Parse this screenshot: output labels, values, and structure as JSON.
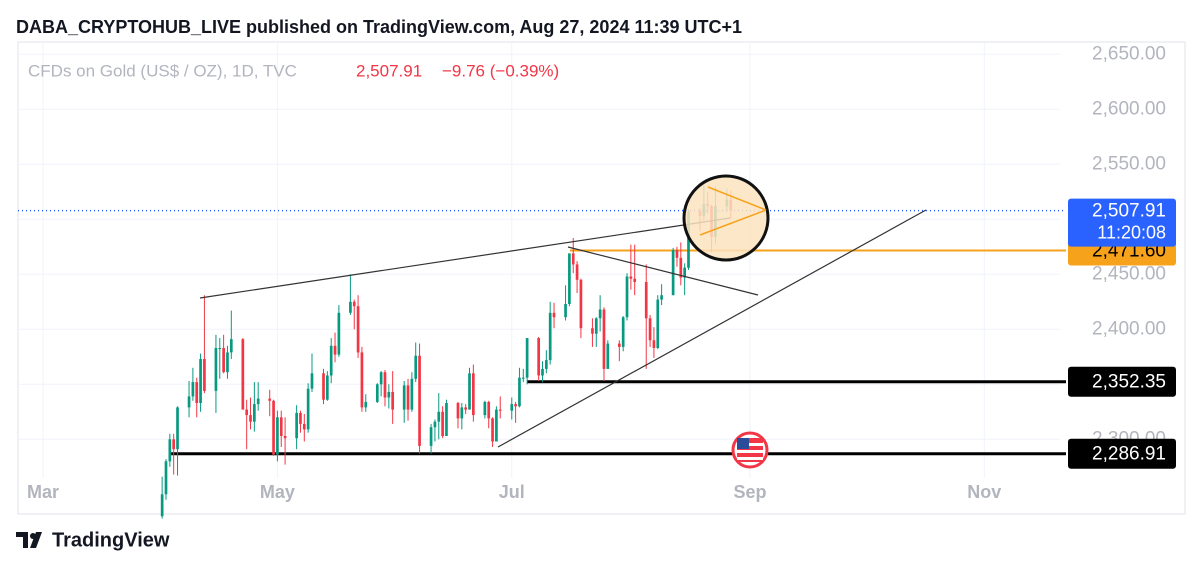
{
  "header": "DABA_CRYPTOHUB_LIVE published on TradingView.com, Aug 27, 2024 11:39 UTC+1",
  "footer": "TradingView",
  "chart_data": {
    "type": "candlestick",
    "title": "CFDs on Gold (US$ / OZ), 1D, TVC",
    "last_price": {
      "value": 2507.91,
      "label": "2,507.91",
      "color": "#f23645"
    },
    "change": "−9.76 (−0.39%)",
    "countdown": "11:20:08",
    "up_color": "#089981",
    "down_color": "#f23645",
    "x": [
      31,
      32,
      33,
      34,
      35,
      38,
      39,
      40,
      41,
      42,
      45,
      46,
      47,
      48,
      49,
      52,
      53,
      54,
      55,
      56,
      59,
      60,
      61,
      62,
      63,
      66,
      67,
      68,
      69,
      70,
      73,
      74,
      75,
      76,
      77,
      80,
      81,
      82,
      83,
      84,
      87,
      88,
      89,
      90,
      91,
      94,
      95,
      96,
      97,
      98,
      101,
      102,
      103,
      104,
      105,
      108,
      109,
      110,
      111,
      112,
      115,
      116,
      117,
      118,
      119,
      122,
      123,
      124,
      125,
      126,
      129,
      130,
      131,
      132,
      133,
      136,
      137,
      138,
      139,
      140,
      143,
      144,
      145,
      146,
      147,
      150,
      151,
      152,
      153,
      154,
      157,
      158,
      159,
      160,
      161,
      164,
      165,
      166,
      167,
      168,
      171,
      172,
      173,
      174,
      175,
      178,
      179
    ],
    "open": [
      2230,
      2250,
      2280,
      2300,
      2291,
      2329,
      2339,
      2352,
      2333,
      2373,
      2344,
      2383,
      2383,
      2361,
      2379,
      2391,
      2327,
      2322,
      2316,
      2332,
      2337,
      2335,
      2286,
      2320,
      2303,
      2301,
      2324,
      2314,
      2309,
      2346,
      2360,
      2336,
      2358,
      2385,
      2377,
      2415,
      2425,
      2421,
      2379,
      2329,
      2334,
      2350,
      2361,
      2338,
      2343,
      2327,
      2349,
      2327,
      2355,
      2376,
      2294,
      2311,
      2316,
      2325,
      2303,
      2333,
      2319,
      2329,
      2327,
      2360,
      2322,
      2334,
      2319,
      2298,
      2327,
      2326,
      2332,
      2330,
      2356,
      2356,
      2392,
      2358,
      2364,
      2372,
      2415,
      2411,
      2423,
      2469,
      2459,
      2445,
      2401,
      2396,
      2410,
      2418,
      2364,
      2387,
      2384,
      2411,
      2448,
      2446,
      2443,
      2410,
      2390,
      2383,
      2427,
      2431,
      2472,
      2465,
      2447,
      2456,
      2507,
      2503,
      2514,
      2512,
      2484,
      2512,
      2518
    ],
    "high": [
      2266,
      2282,
      2305,
      2305,
      2330,
      2353,
      2365,
      2356,
      2378,
      2431,
      2395,
      2392,
      2395,
      2385,
      2417,
      2392,
      2336,
      2338,
      2352,
      2352,
      2345,
      2336,
      2326,
      2326,
      2320,
      2331,
      2326,
      2323,
      2351,
      2378,
      2364,
      2362,
      2392,
      2397,
      2422,
      2450,
      2427,
      2431,
      2384,
      2341,
      2351,
      2362,
      2363,
      2350,
      2362,
      2353,
      2355,
      2361,
      2388,
      2387,
      2314,
      2318,
      2342,
      2330,
      2336,
      2334,
      2333,
      2332,
      2365,
      2368,
      2335,
      2335,
      2320,
      2330,
      2339,
      2338,
      2334,
      2365,
      2364,
      2392,
      2393,
      2371,
      2381,
      2425,
      2424,
      2440,
      2469,
      2483,
      2462,
      2446,
      2410,
      2411,
      2431,
      2420,
      2390,
      2390,
      2412,
      2451,
      2477,
      2477,
      2459,
      2413,
      2402,
      2431,
      2441,
      2474,
      2475,
      2479,
      2460,
      2509,
      2510,
      2531,
      2525,
      2513,
      2530,
      2528,
      2526
    ],
    "low": [
      2228,
      2245,
      2275,
      2268,
      2267,
      2320,
      2335,
      2320,
      2325,
      2342,
      2324,
      2355,
      2360,
      2355,
      2373,
      2327,
      2291,
      2309,
      2307,
      2326,
      2321,
      2285,
      2280,
      2293,
      2277,
      2291,
      2306,
      2298,
      2306,
      2343,
      2332,
      2335,
      2351,
      2370,
      2375,
      2413,
      2400,
      2374,
      2325,
      2325,
      2333,
      2339,
      2330,
      2328,
      2314,
      2315,
      2317,
      2325,
      2352,
      2287,
      2287,
      2298,
      2300,
      2301,
      2303,
      2310,
      2309,
      2323,
      2327,
      2316,
      2319,
      2310,
      2293,
      2298,
      2319,
      2318,
      2315,
      2329,
      2352,
      2350,
      2353,
      2352,
      2360,
      2368,
      2401,
      2408,
      2421,
      2451,
      2433,
      2392,
      2384,
      2384,
      2398,
      2353,
      2364,
      2371,
      2380,
      2408,
      2436,
      2431,
      2364,
      2384,
      2374,
      2382,
      2422,
      2431,
      2457,
      2440,
      2431,
      2454,
      2489,
      2499,
      2505,
      2470,
      2478,
      2507,
      2500
    ],
    "close": [
      2250,
      2280,
      2300,
      2291,
      2329,
      2339,
      2352,
      2333,
      2373,
      2344,
      2383,
      2383,
      2361,
      2379,
      2391,
      2327,
      2322,
      2316,
      2332,
      2337,
      2335,
      2286,
      2320,
      2303,
      2301,
      2324,
      2314,
      2309,
      2346,
      2360,
      2336,
      2358,
      2385,
      2377,
      2415,
      2425,
      2421,
      2379,
      2329,
      2334,
      2350,
      2361,
      2338,
      2343,
      2327,
      2349,
      2327,
      2355,
      2376,
      2294,
      2311,
      2316,
      2325,
      2303,
      2333,
      2319,
      2329,
      2327,
      2360,
      2322,
      2334,
      2319,
      2298,
      2327,
      2326,
      2332,
      2330,
      2356,
      2356,
      2392,
      2358,
      2364,
      2372,
      2415,
      2411,
      2423,
      2469,
      2459,
      2445,
      2401,
      2396,
      2410,
      2418,
      2364,
      2387,
      2384,
      2411,
      2448,
      2446,
      2443,
      2410,
      2390,
      2383,
      2427,
      2431,
      2472,
      2465,
      2447,
      2456,
      2507,
      2503,
      2514,
      2512,
      2484,
      2512,
      2518,
      2507.91
    ],
    "xlim": [
      -6,
      266
    ],
    "xticks": [
      {
        "value": 0,
        "label": "Mar"
      },
      {
        "value": 61,
        "label": "May"
      },
      {
        "value": 122,
        "label": "Jul"
      },
      {
        "value": 184,
        "label": "Sep"
      },
      {
        "value": 245,
        "label": "Nov"
      }
    ],
    "ylim": [
      2263,
      2663
    ],
    "yticks": [
      {
        "value": 2300,
        "label": "2,300.00"
      },
      {
        "value": 2350,
        "label": "2,350.00"
      },
      {
        "value": 2400,
        "label": "2,400.00"
      },
      {
        "value": 2450,
        "label": "2,450.00"
      },
      {
        "value": 2500,
        "label": "2,500.00"
      },
      {
        "value": 2550,
        "label": "2,550.00"
      },
      {
        "value": 2600,
        "label": "2,600.00"
      },
      {
        "value": 2650,
        "label": "2,650.00"
      }
    ],
    "horizontal_lines": [
      {
        "value": 2471.6,
        "label": "2,471.60",
        "color": "#f7a21b"
      },
      {
        "value": 2352.35,
        "label": "2,352.35",
        "color": "#000000"
      },
      {
        "value": 2286.91,
        "label": "2,286.91",
        "color": "#000000"
      }
    ]
  }
}
